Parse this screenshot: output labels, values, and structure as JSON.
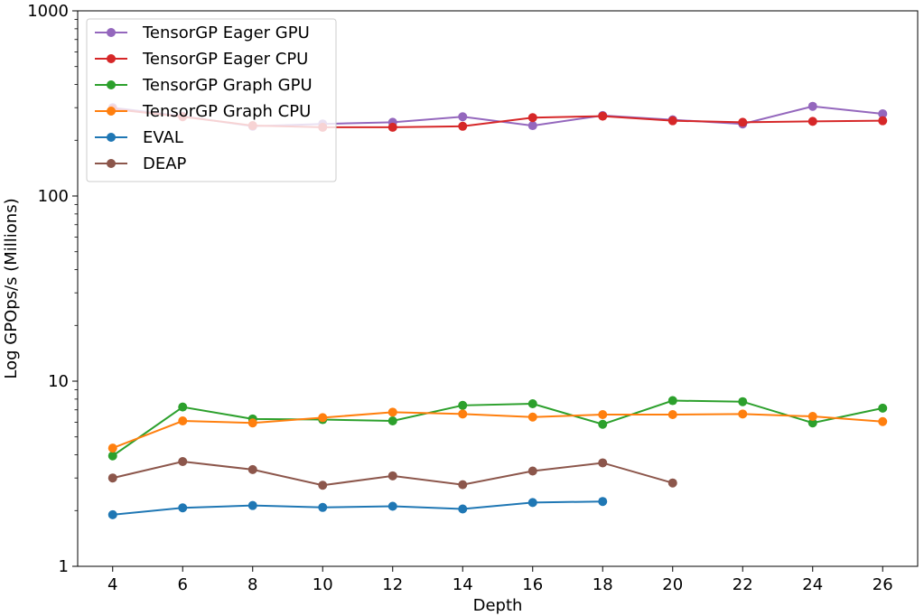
{
  "chart_data": {
    "type": "line",
    "title": "",
    "xlabel": "Depth",
    "ylabel": "Log GPOps/s (Millions)",
    "yscale": "log",
    "xlim": [
      3,
      27
    ],
    "ylim": [
      1,
      1000
    ],
    "xticks": [
      4,
      6,
      8,
      10,
      12,
      14,
      16,
      18,
      20,
      22,
      24,
      26
    ],
    "xtick_labels": [
      "4",
      "6",
      "8",
      "10",
      "12",
      "14",
      "16",
      "18",
      "20",
      "22",
      "24",
      "26"
    ],
    "yticks": [
      1,
      10,
      100,
      1000
    ],
    "ytick_labels": [
      "1",
      "10",
      "100",
      "1000"
    ],
    "grid": false,
    "legend_position": "top-left",
    "series": [
      {
        "name": "TensorGP Eager GPU",
        "color": "#9467bd",
        "x": [
          4,
          6,
          8,
          10,
          12,
          14,
          16,
          18,
          20,
          22,
          24,
          26
        ],
        "y": [
          300,
          270,
          238,
          245,
          250,
          268,
          240,
          272,
          258,
          245,
          305,
          278
        ]
      },
      {
        "name": "TensorGP Eager CPU",
        "color": "#d62728",
        "x": [
          4,
          6,
          8,
          10,
          12,
          14,
          16,
          18,
          20,
          22,
          24,
          26
        ],
        "y": [
          295,
          268,
          240,
          235,
          235,
          238,
          265,
          270,
          255,
          250,
          253,
          255
        ]
      },
      {
        "name": "TensorGP Graph GPU",
        "color": "#2ca02c",
        "x": [
          4,
          6,
          8,
          10,
          12,
          14,
          16,
          18,
          20,
          22,
          24,
          26
        ],
        "y": [
          3.95,
          7.25,
          6.25,
          6.2,
          6.1,
          7.4,
          7.55,
          5.85,
          7.85,
          7.75,
          5.95,
          7.15
        ]
      },
      {
        "name": "TensorGP Graph CPU",
        "color": "#ff7f0e",
        "x": [
          4,
          6,
          8,
          10,
          12,
          14,
          16,
          18,
          20,
          22,
          24,
          26
        ],
        "y": [
          4.35,
          6.1,
          5.95,
          6.35,
          6.8,
          6.65,
          6.4,
          6.6,
          6.6,
          6.65,
          6.45,
          6.05
        ]
      },
      {
        "name": "EVAL",
        "color": "#1f77b4",
        "x": [
          4,
          6,
          8,
          10,
          12,
          14,
          16,
          18
        ],
        "y": [
          1.9,
          2.07,
          2.13,
          2.08,
          2.11,
          2.04,
          2.21,
          2.24
        ]
      },
      {
        "name": "DEAP",
        "color": "#8c564b",
        "x": [
          4,
          6,
          8,
          10,
          12,
          14,
          16,
          18,
          20
        ],
        "y": [
          3.0,
          3.68,
          3.33,
          2.74,
          3.08,
          2.76,
          3.27,
          3.62,
          2.82
        ]
      }
    ]
  }
}
